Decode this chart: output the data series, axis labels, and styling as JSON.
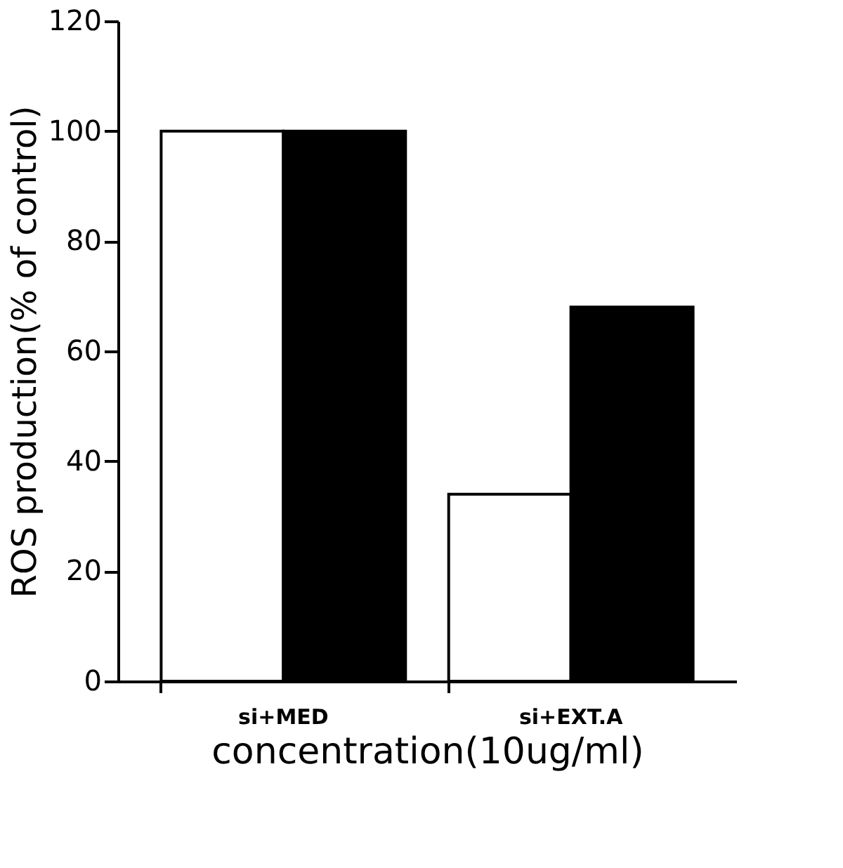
{
  "chart_data": {
    "type": "bar",
    "xlabel": "concentration(10ug/ml)",
    "ylabel": "ROS production(% of control)",
    "categories": [
      "si+MED",
      "si+EXT.A"
    ],
    "series": [
      {
        "color": "#ffffff",
        "values": [
          100,
          34
        ]
      },
      {
        "color": "#000000",
        "values": [
          100,
          68
        ]
      }
    ],
    "ylim": [
      0,
      120
    ],
    "yticks": [
      0,
      20,
      40,
      60,
      80,
      100,
      120
    ],
    "grid": false
  }
}
